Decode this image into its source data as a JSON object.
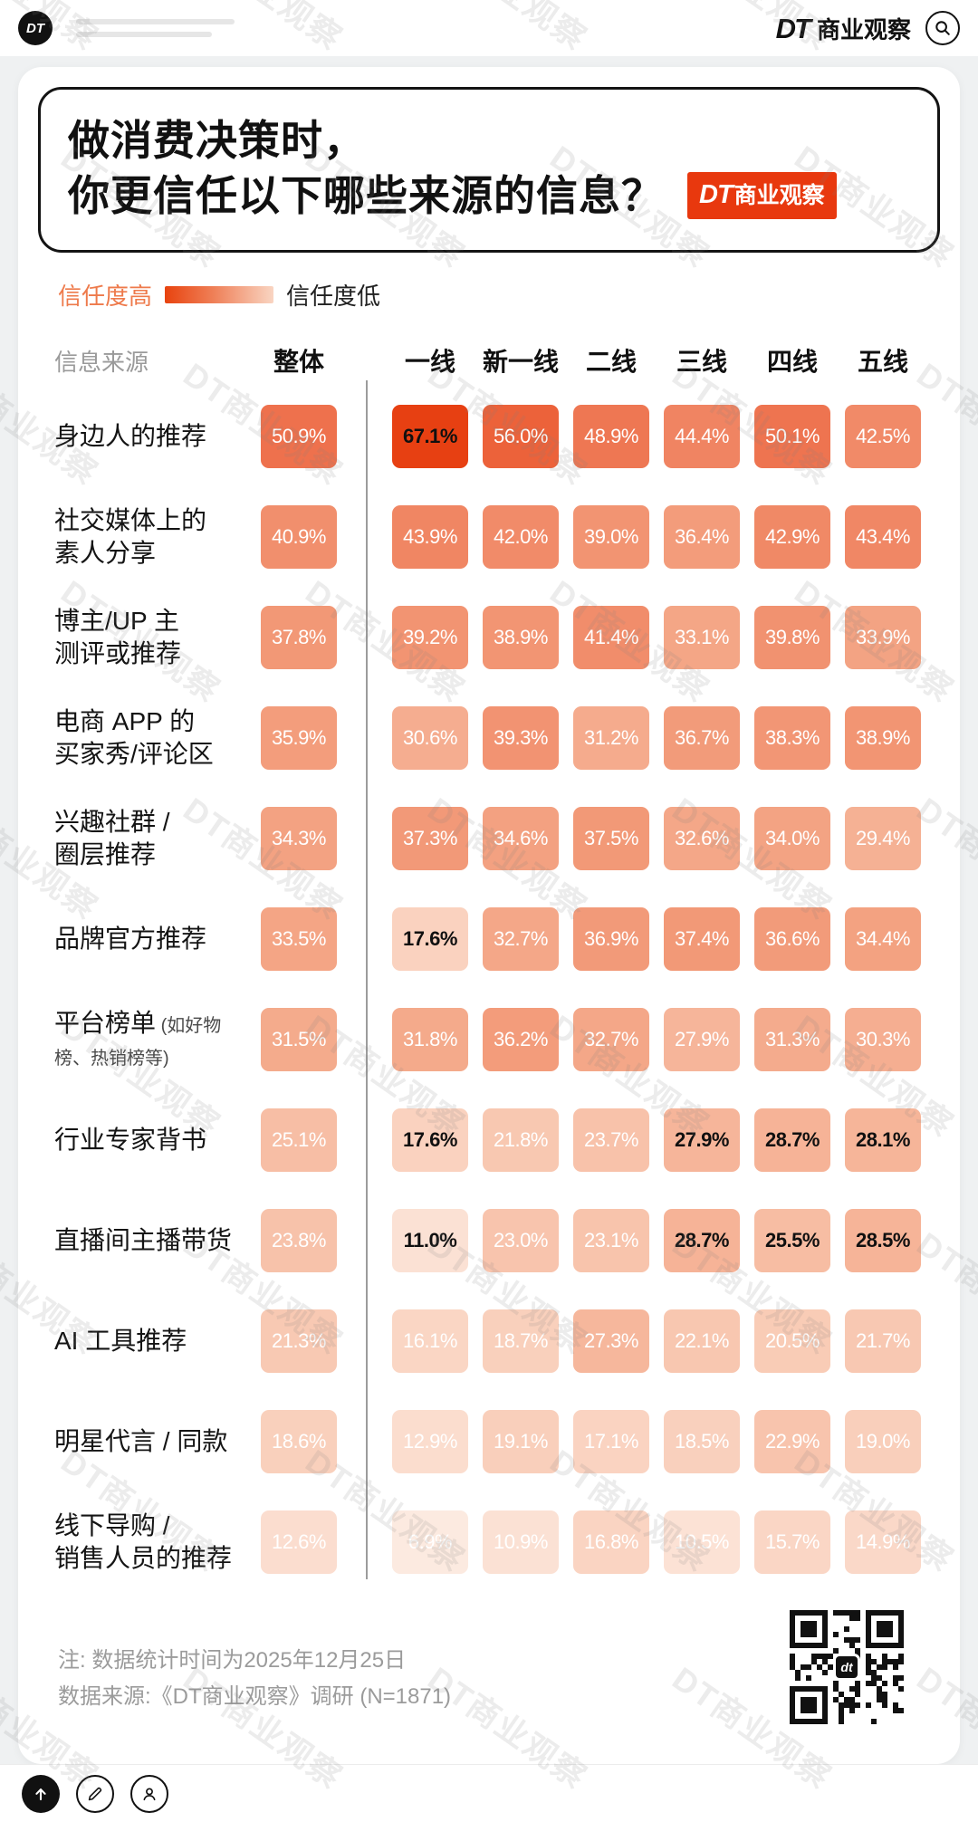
{
  "topbar": {
    "logo_circle": "DT",
    "brand_dt": "DT",
    "brand_rest": "商业观察"
  },
  "header": {
    "title_line1": "做消费决策时，",
    "title_line2": "你更信任以下哪些来源的信息？",
    "badge_dt": "DT",
    "badge_rest": "商业观察"
  },
  "legend": {
    "high_label": "信任度高",
    "low_label": "信任度低"
  },
  "table": {
    "source_header": "信息来源"
  },
  "chart_data": {
    "type": "heatmap",
    "title": "做消费决策时，你更信任以下哪些来源的信息？",
    "value_format": "percent",
    "columns": [
      "整体",
      "一线",
      "新一线",
      "二线",
      "三线",
      "四线",
      "五线"
    ],
    "divider_after_column": "整体",
    "color_scale": {
      "low_value": 5,
      "high_value": 68,
      "low": "#fdeee6",
      "high": "#e73d0f"
    },
    "rows": [
      {
        "label": "身边人的推荐",
        "values": [
          50.9,
          67.1,
          56.0,
          48.9,
          44.4,
          50.1,
          42.5
        ],
        "emphasis": [
          1
        ]
      },
      {
        "label": "社交媒体上的\n素人分享",
        "values": [
          40.9,
          43.9,
          42.0,
          39.0,
          36.4,
          42.9,
          43.4
        ],
        "emphasis": []
      },
      {
        "label": "博主/UP 主\n测评或推荐",
        "values": [
          37.8,
          39.2,
          38.9,
          41.4,
          33.1,
          39.8,
          33.9
        ],
        "emphasis": []
      },
      {
        "label": "电商 APP 的\n买家秀/评论区",
        "values": [
          35.9,
          30.6,
          39.3,
          31.2,
          36.7,
          38.3,
          38.9
        ],
        "emphasis": []
      },
      {
        "label": "兴趣社群 /\n圈层推荐",
        "values": [
          34.3,
          37.3,
          34.6,
          37.5,
          32.6,
          34.0,
          29.4
        ],
        "emphasis": []
      },
      {
        "label": "品牌官方推荐",
        "values": [
          33.5,
          17.6,
          32.7,
          36.9,
          37.4,
          36.6,
          34.4
        ],
        "emphasis": [
          1
        ]
      },
      {
        "label": "平台榜单",
        "note": " (如好物榜、热销榜等)",
        "values": [
          31.5,
          31.8,
          36.2,
          32.7,
          27.9,
          31.3,
          30.3
        ],
        "emphasis": []
      },
      {
        "label": "行业专家背书",
        "values": [
          25.1,
          17.6,
          21.8,
          23.7,
          27.9,
          28.7,
          28.1
        ],
        "emphasis": [
          1,
          4,
          5,
          6
        ]
      },
      {
        "label": "直播间主播带货",
        "values": [
          23.8,
          11.0,
          23.0,
          23.1,
          28.7,
          25.5,
          28.5
        ],
        "emphasis": [
          1,
          4,
          5,
          6
        ]
      },
      {
        "label": "AI 工具推荐",
        "values": [
          21.3,
          16.1,
          18.7,
          27.3,
          22.1,
          20.5,
          21.7
        ],
        "emphasis": []
      },
      {
        "label": "明星代言 / 同款",
        "values": [
          18.6,
          12.9,
          19.1,
          17.1,
          18.5,
          22.9,
          19.0
        ],
        "emphasis": []
      },
      {
        "label": "线下导购 /\n销售人员的推荐",
        "values": [
          12.6,
          6.9,
          10.9,
          16.8,
          10.5,
          15.7,
          14.9
        ],
        "emphasis": []
      }
    ]
  },
  "footer": {
    "note1": "注: 数据统计时间为2025年12月25日",
    "note2": "数据来源:《DT商业观察》调研 (N=1871)",
    "qr_label": "dt"
  },
  "watermark": "DT商业观察"
}
